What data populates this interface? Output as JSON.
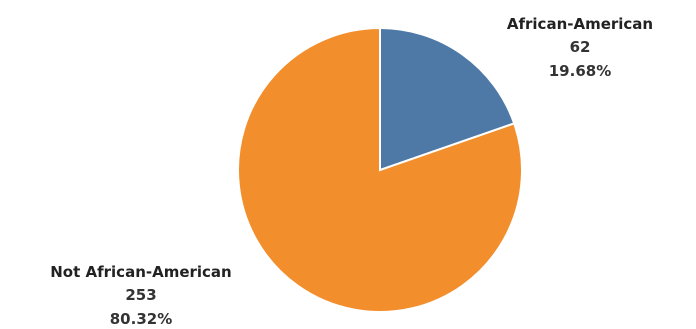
{
  "chart_data": {
    "type": "pie",
    "title": "",
    "slices": [
      {
        "label": "African-American",
        "value": 62,
        "percent": "19.68%",
        "color": "#4e79a7"
      },
      {
        "label": "Not African-American",
        "value": 253,
        "percent": "80.32%",
        "color": "#f28e2b"
      }
    ],
    "start_angle": "12 o'clock",
    "direction": "clockwise"
  }
}
